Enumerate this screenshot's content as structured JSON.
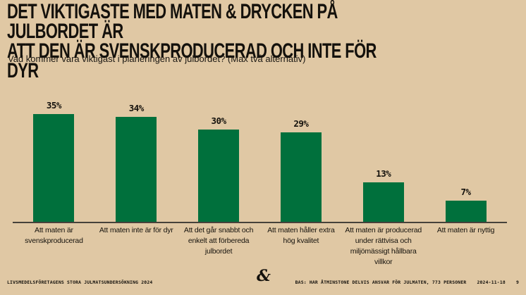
{
  "header": {
    "title": "DET VIKTIGASTE MED MATEN & DRYCKEN PÅ JULBORDET ÄR\nATT DEN ÄR SVENSKPRODUCERAD OCH INTE FÖR DYR",
    "subtitle": "Vad kommer vara viktigast i planeringen av julbordet? (Max två alternativ)"
  },
  "chart_data": {
    "type": "bar",
    "title": "DET VIKTIGASTE MED MATEN & DRYCKEN PÅ JULBORDET ÄR ATT DEN ÄR SVENSKPRODUCERAD OCH INTE FÖR DYR",
    "question": "Vad kommer vara viktigast i planeringen av julbordet? (Max två alternativ)",
    "categories": [
      "Att maten är svenskproducerad",
      "Att maten inte är för dyr",
      "Att det går snabbt och enkelt att förbereda julbordet",
      "Att maten håller extra hög kvalitet",
      "Att maten är producerad under rättvisa och miljömässigt hållbara villkor",
      "Att maten är nyttig"
    ],
    "category_lines": [
      [
        "Att maten är",
        "svenskproducerad"
      ],
      [
        "Att maten inte är för dyr"
      ],
      [
        "Att det går snabbt och",
        "enkelt att förbereda",
        "julbordet"
      ],
      [
        "Att maten håller extra",
        "hög kvalitet"
      ],
      [
        "Att maten är producerad",
        "under rättvisa och",
        "miljömässigt hållbara",
        "villkor"
      ],
      [
        "Att maten är nyttig"
      ]
    ],
    "values": [
      35,
      34,
      30,
      29,
      13,
      7
    ],
    "value_labels": [
      "35%",
      "34%",
      "30%",
      "29%",
      "13%",
      "7%"
    ],
    "xlabel": "",
    "ylabel": "",
    "ylim": [
      0,
      40
    ],
    "grid": false,
    "legend": false,
    "bar_color": "#00703C"
  },
  "footer": {
    "source_label": "LIVSMEDELSFÖRETAGENS STORA JULMATSUNDERSÖKNING 2024",
    "base_note": "BAS: HAR ÅTMINSTONE DELVIS ANSVAR FÖR JULMATEN, 773 PERSONER",
    "date": "2024-11-18",
    "page_number": "9",
    "logo_glyph": "&"
  },
  "colors": {
    "background": "#E0C8A4",
    "bar": "#00703C",
    "text": "#14110C",
    "axis": "#46423A"
  }
}
